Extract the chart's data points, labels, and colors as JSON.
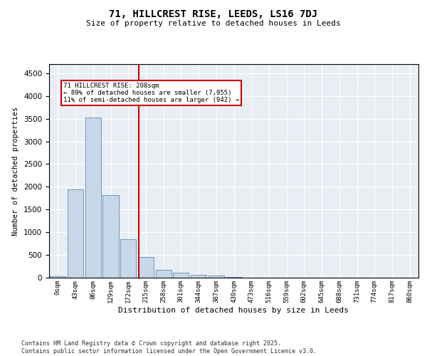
{
  "title": "71, HILLCREST RISE, LEEDS, LS16 7DJ",
  "subtitle": "Size of property relative to detached houses in Leeds",
  "xlabel": "Distribution of detached houses by size in Leeds",
  "ylabel": "Number of detached properties",
  "bar_color": "#c8d8e8",
  "bar_edge_color": "#5b8db8",
  "background_color": "#e8eef4",
  "annotation_box_color": "#cc0000",
  "vline_color": "#cc0000",
  "categories": [
    "0sqm",
    "43sqm",
    "86sqm",
    "129sqm",
    "172sqm",
    "215sqm",
    "258sqm",
    "301sqm",
    "344sqm",
    "387sqm",
    "430sqm",
    "473sqm",
    "516sqm",
    "559sqm",
    "602sqm",
    "645sqm",
    "688sqm",
    "731sqm",
    "774sqm",
    "817sqm",
    "860sqm"
  ],
  "values": [
    30,
    1950,
    3520,
    1820,
    850,
    450,
    170,
    105,
    70,
    40,
    10,
    5,
    3,
    2,
    1,
    1,
    0,
    0,
    0,
    0,
    0
  ],
  "ylim": [
    0,
    4700
  ],
  "yticks": [
    0,
    500,
    1000,
    1500,
    2000,
    2500,
    3000,
    3500,
    4000,
    4500
  ],
  "property_label": "71 HILLCREST RISE: 208sqm",
  "annotation_line1": "← 89% of detached houses are smaller (7,955)",
  "annotation_line2": "11% of semi-detached houses are larger (942) →",
  "vline_x": 4.6,
  "footer_line1": "Contains HM Land Registry data © Crown copyright and database right 2025.",
  "footer_line2": "Contains public sector information licensed under the Open Government Licence v3.0."
}
